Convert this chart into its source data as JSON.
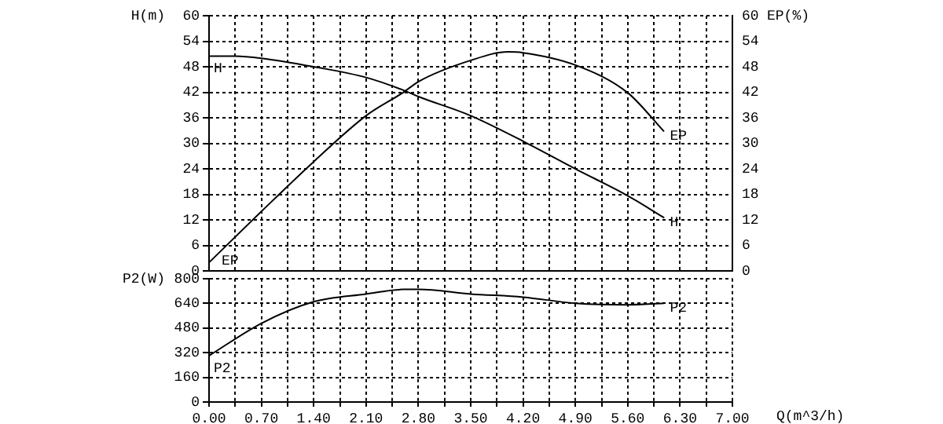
{
  "chart_data": [
    {
      "type": "line",
      "ylabel": "H(m)",
      "y2label": "EP(%)",
      "tick_labels": "y",
      "xlim": [
        0,
        7
      ],
      "xticks": [
        0,
        0.35,
        0.7,
        1.05,
        1.4,
        1.75,
        2.1,
        2.45,
        2.8,
        3.15,
        3.5,
        3.85,
        4.2,
        4.55,
        4.9,
        5.25,
        5.6,
        5.95,
        6.3,
        6.65,
        7
      ],
      "ylim": [
        0,
        60
      ],
      "yticks": [
        0,
        6,
        12,
        18,
        24,
        30,
        36,
        42,
        48,
        54,
        60
      ],
      "y2lim": [
        0,
        60
      ],
      "y2ticks": [
        0,
        6,
        12,
        18,
        24,
        30,
        36,
        42,
        48,
        54,
        60
      ],
      "grid": true,
      "legend": false,
      "marker": "none",
      "line_style": "solid",
      "series": [
        {
          "name": "H",
          "color": "#000000",
          "x": [
            0,
            0.35,
            0.7,
            1.4,
            2.1,
            2.6,
            2.8,
            3.5,
            4.2,
            4.9,
            5.6,
            6.08
          ],
          "values": [
            50.5,
            50.5,
            50,
            48,
            45.5,
            42.5,
            41,
            36.5,
            30.5,
            24,
            17.7,
            12.6
          ]
        },
        {
          "name": "EP",
          "color": "#000000",
          "axis": "y2",
          "x": [
            0,
            0.7,
            1.4,
            2.1,
            2.6,
            2.8,
            3.5,
            4.0,
            4.2,
            4.9,
            5.6,
            6.08
          ],
          "values": [
            2,
            14,
            25.7,
            36.5,
            42,
            44.5,
            49.5,
            51.5,
            51.3,
            48.4,
            41.9,
            32.9
          ]
        }
      ]
    },
    {
      "type": "line",
      "xlabel": "Q(m^3/h)",
      "ylabel": "P2(W)",
      "xlim": [
        0,
        7
      ],
      "xticks": [
        {
          "value": 0,
          "label": "0.00"
        },
        {
          "value": 0.35,
          "label": null
        },
        {
          "value": 0.7,
          "label": "0.70"
        },
        {
          "value": 1.05,
          "label": null
        },
        {
          "value": 1.4,
          "label": "1.40"
        },
        {
          "value": 1.75,
          "label": null
        },
        {
          "value": 2.1,
          "label": "2.10"
        },
        {
          "value": 2.45,
          "label": null
        },
        {
          "value": 2.8,
          "label": "2.80"
        },
        {
          "value": 3.15,
          "label": null
        },
        {
          "value": 3.5,
          "label": "3.50"
        },
        {
          "value": 3.85,
          "label": null
        },
        {
          "value": 4.2,
          "label": "4.20"
        },
        {
          "value": 4.55,
          "label": null
        },
        {
          "value": 4.9,
          "label": "4.90"
        },
        {
          "value": 5.25,
          "label": null
        },
        {
          "value": 5.6,
          "label": "5.60"
        },
        {
          "value": 5.95,
          "label": null
        },
        {
          "value": 6.3,
          "label": "6.30"
        },
        {
          "value": 6.65,
          "label": null
        },
        {
          "value": 7,
          "label": "7.00"
        }
      ],
      "ylim": [
        0,
        800
      ],
      "yticks": [
        0,
        160,
        320,
        480,
        640,
        800
      ],
      "grid": true,
      "legend": false,
      "marker": "none",
      "line_style": "solid",
      "series": [
        {
          "name": "P2",
          "color": "#000000",
          "x": [
            0,
            0.7,
            1.4,
            2.1,
            2.6,
            2.8,
            3.5,
            4.2,
            4.9,
            5.6,
            6.08
          ],
          "values": [
            300,
            510,
            650,
            700,
            730,
            730,
            700,
            680,
            640,
            630,
            640
          ]
        }
      ]
    }
  ]
}
